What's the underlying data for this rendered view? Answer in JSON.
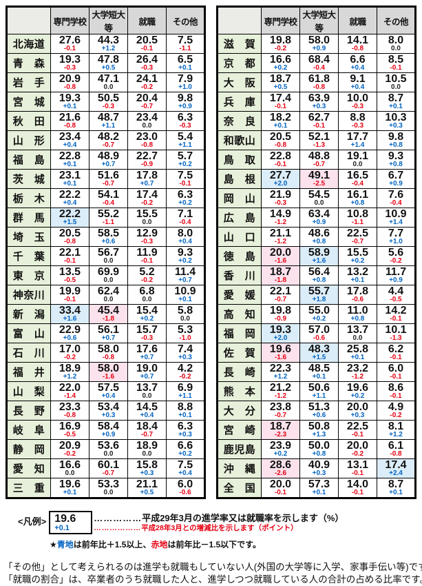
{
  "columns": [
    "専門学校",
    "大学短大等",
    "就職",
    "その他"
  ],
  "left_rows": [
    {
      "name": "北海道",
      "cells": [
        [
          "27.6",
          "-0.1"
        ],
        [
          "44.3",
          "+1.2"
        ],
        [
          "20.5",
          "-0.1"
        ],
        [
          "7.5",
          "-1.1"
        ]
      ]
    },
    {
      "name": "青　森",
      "cells": [
        [
          "19.3",
          "-0.3"
        ],
        [
          "47.8",
          "+0.5"
        ],
        [
          "26.4",
          "-0.3"
        ],
        [
          "6.5",
          "+0.1"
        ]
      ]
    },
    {
      "name": "岩　手",
      "cells": [
        [
          "20.9",
          "-0.8"
        ],
        [
          "47.1",
          "0.0"
        ],
        [
          "24.1",
          "-0.2"
        ],
        [
          "7.9",
          "+1.0"
        ]
      ]
    },
    {
      "name": "宮　城",
      "cells": [
        [
          "19.3",
          "+0.1"
        ],
        [
          "50.5",
          "-0.3"
        ],
        [
          "20.4",
          "-0.7"
        ],
        [
          "9.8",
          "+0.9"
        ]
      ]
    },
    {
      "name": "秋　田",
      "cells": [
        [
          "21.6",
          "-0.8"
        ],
        [
          "48.7",
          "+1.1"
        ],
        [
          "23.4",
          "0.0"
        ],
        [
          "6.3",
          "-0.3"
        ]
      ]
    },
    {
      "name": "山　形",
      "cells": [
        [
          "23.4",
          "+0.4"
        ],
        [
          "48.2",
          "-0.7"
        ],
        [
          "23.0",
          "-0.8"
        ],
        [
          "5.4",
          "+1.1"
        ]
      ]
    },
    {
      "name": "福　島",
      "cells": [
        [
          "22.8",
          "+0.1"
        ],
        [
          "48.9",
          "+0.7"
        ],
        [
          "22.7",
          "-0.9"
        ],
        [
          "5.7",
          "+0.2"
        ]
      ]
    },
    {
      "name": "茨　城",
      "cells": [
        [
          "23.1",
          "+0.1"
        ],
        [
          "51.6",
          "-0.7"
        ],
        [
          "17.8",
          "+0.7"
        ],
        [
          "7.5",
          "-0.1"
        ]
      ]
    },
    {
      "name": "栃　木",
      "cells": [
        [
          "22.2",
          "+0.4"
        ],
        [
          "54.1",
          "-0.4"
        ],
        [
          "17.4",
          "-0.2"
        ],
        [
          "6.3",
          "+0.2"
        ]
      ]
    },
    {
      "name": "群　馬",
      "cells": [
        [
          "22.2",
          "+1.5"
        ],
        [
          "55.2",
          "-1.1"
        ],
        [
          "15.5",
          "0.0"
        ],
        [
          "7.1",
          "-0.4"
        ]
      ]
    },
    {
      "name": "埼　玉",
      "cells": [
        [
          "20.5",
          "-0.8"
        ],
        [
          "58.5",
          "+0.6"
        ],
        [
          "12.9",
          "-0.3"
        ],
        [
          "8.0",
          "+0.4"
        ]
      ]
    },
    {
      "name": "千　葉",
      "cells": [
        [
          "22.1",
          "-0.1"
        ],
        [
          "56.7",
          "0.0"
        ],
        [
          "11.9",
          "-0.1"
        ],
        [
          "9.3",
          "+0.2"
        ]
      ]
    },
    {
      "name": "東　京",
      "cells": [
        [
          "13.5",
          "-0.5"
        ],
        [
          "69.9",
          "0.0"
        ],
        [
          "5.2",
          "-0.2"
        ],
        [
          "11.4",
          "+0.7"
        ]
      ]
    },
    {
      "name": "神奈川",
      "cells": [
        [
          "19.9",
          "-0.1"
        ],
        [
          "62.4",
          "0.0"
        ],
        [
          "6.8",
          "0.0"
        ],
        [
          "10.9",
          "+0.1"
        ]
      ]
    },
    {
      "name": "新　潟",
      "cells": [
        [
          "33.4",
          "+1.6"
        ],
        [
          "45.4",
          "-1.8"
        ],
        [
          "15.4",
          "+0.2"
        ],
        [
          "5.8",
          "0.0"
        ]
      ]
    },
    {
      "name": "富　山",
      "cells": [
        [
          "22.9",
          "+0.6"
        ],
        [
          "56.1",
          "+0.7"
        ],
        [
          "15.7",
          "-0.3"
        ],
        [
          "5.3",
          "-1.0"
        ]
      ]
    },
    {
      "name": "石　川",
      "cells": [
        [
          "17.0",
          "-0.2"
        ],
        [
          "58.0",
          "-0.8"
        ],
        [
          "17.6",
          "+0.7"
        ],
        [
          "7.4",
          "+0.3"
        ]
      ]
    },
    {
      "name": "福　井",
      "cells": [
        [
          "18.9",
          "+1.2"
        ],
        [
          "58.0",
          "-1.6"
        ],
        [
          "19.0",
          "+0.7"
        ],
        [
          "4.2",
          "-0.2"
        ]
      ]
    },
    {
      "name": "山　梨",
      "cells": [
        [
          "22.0",
          "-1.4"
        ],
        [
          "57.5",
          "+0.4"
        ],
        [
          "13.7",
          "0.0"
        ],
        [
          "6.9",
          "+1.1"
        ]
      ]
    },
    {
      "name": "長　野",
      "cells": [
        [
          "23.3",
          "-0.8"
        ],
        [
          "53.4",
          "+0.3"
        ],
        [
          "14.5",
          "+0.4"
        ],
        [
          "8.8",
          "+0.1"
        ]
      ]
    },
    {
      "name": "岐　阜",
      "cells": [
        [
          "16.9",
          "-0.5"
        ],
        [
          "58.4",
          "+0.9"
        ],
        [
          "18.4",
          "-0.7"
        ],
        [
          "6.3",
          "+0.3"
        ]
      ]
    },
    {
      "name": "静　岡",
      "cells": [
        [
          "20.9",
          "-0.2"
        ],
        [
          "53.6",
          "0.0"
        ],
        [
          "18.9",
          "0.0"
        ],
        [
          "6.6",
          "+0.2"
        ]
      ]
    },
    {
      "name": "愛　知",
      "cells": [
        [
          "16.6",
          "0.0"
        ],
        [
          "60.1",
          "-0.7"
        ],
        [
          "15.8",
          "+0.3"
        ],
        [
          "7.5",
          "+0.4"
        ]
      ]
    },
    {
      "name": "三　重",
      "cells": [
        [
          "19.6",
          "+0.1"
        ],
        [
          "53.3",
          "0.0"
        ],
        [
          "21.1",
          "+0.5"
        ],
        [
          "6.0",
          "-0.6"
        ]
      ]
    }
  ],
  "right_rows": [
    {
      "name": "滋　賀",
      "cells": [
        [
          "19.8",
          "-0.2"
        ],
        [
          "58.0",
          "+0.9"
        ],
        [
          "14.1",
          "-0.8"
        ],
        [
          "8.0",
          "0.0"
        ]
      ]
    },
    {
      "name": "京　都",
      "cells": [
        [
          "16.6",
          "+0.2"
        ],
        [
          "68.4",
          "-0.4"
        ],
        [
          "6.6",
          "+0.4"
        ],
        [
          "8.5",
          "-0.1"
        ]
      ]
    },
    {
      "name": "大　阪",
      "cells": [
        [
          "18.7",
          "+0.5"
        ],
        [
          "61.8",
          "-0.8"
        ],
        [
          "9.1",
          "+0.4"
        ],
        [
          "10.5",
          "0.0"
        ]
      ]
    },
    {
      "name": "兵　庫",
      "cells": [
        [
          "17.4",
          "-0.1"
        ],
        [
          "63.9",
          "+0.3"
        ],
        [
          "10.0",
          "-0.3"
        ],
        [
          "8.7",
          "+0.1"
        ]
      ]
    },
    {
      "name": "奈　良",
      "cells": [
        [
          "18.2",
          "+0.1"
        ],
        [
          "62.7",
          "-0.1"
        ],
        [
          "8.8",
          "-0.3"
        ],
        [
          "10.3",
          "+0.3"
        ]
      ]
    },
    {
      "name": "和歌山",
      "cells": [
        [
          "20.5",
          "-0.8"
        ],
        [
          "52.1",
          "-1.3"
        ],
        [
          "17.7",
          "+1.4"
        ],
        [
          "9.8",
          "+0.8"
        ]
      ]
    },
    {
      "name": "鳥　取",
      "cells": [
        [
          "22.8",
          "-0.1"
        ],
        [
          "48.8",
          "-0.7"
        ],
        [
          "19.1",
          "0.0"
        ],
        [
          "9.3",
          "+0.8"
        ]
      ]
    },
    {
      "name": "島　根",
      "cells": [
        [
          "27.7",
          "+2.0"
        ],
        [
          "49.1",
          "-2.5"
        ],
        [
          "16.5",
          "-0.4"
        ],
        [
          "6.7",
          "+0.9"
        ]
      ]
    },
    {
      "name": "岡　山",
      "cells": [
        [
          "21.9",
          "-0.3"
        ],
        [
          "54.5",
          "0.0"
        ],
        [
          "16.1",
          "+0.8"
        ],
        [
          "7.6",
          "-0.4"
        ]
      ]
    },
    {
      "name": "広　島",
      "cells": [
        [
          "14.9",
          "-1.2"
        ],
        [
          "63.4",
          "+0.9"
        ],
        [
          "10.8",
          "-1.1"
        ],
        [
          "10.9",
          "+1.4"
        ]
      ]
    },
    {
      "name": "山　口",
      "cells": [
        [
          "21.1",
          "-1.2"
        ],
        [
          "48.6",
          "+0.8"
        ],
        [
          "22.5",
          "-0.7"
        ],
        [
          "7.7",
          "+1.0"
        ]
      ]
    },
    {
      "name": "徳　島",
      "cells": [
        [
          "20.0",
          "-1.6"
        ],
        [
          "58.9",
          "+1.6"
        ],
        [
          "15.5",
          "+0.2"
        ],
        [
          "5.6",
          "-0.2"
        ]
      ]
    },
    {
      "name": "香　川",
      "cells": [
        [
          "18.7",
          "-1.8"
        ],
        [
          "56.4",
          "+0.8"
        ],
        [
          "13.2",
          "+0.1"
        ],
        [
          "11.7",
          "+0.9"
        ]
      ]
    },
    {
      "name": "愛　媛",
      "cells": [
        [
          "22.1",
          "-0.7"
        ],
        [
          "55.7",
          "+1.8"
        ],
        [
          "17.8",
          "-0.6"
        ],
        [
          "4.4",
          "-0.5"
        ]
      ]
    },
    {
      "name": "高　知",
      "cells": [
        [
          "19.8",
          "-0.9"
        ],
        [
          "55.0",
          "+0.2"
        ],
        [
          "11.0",
          "+0.8"
        ],
        [
          "14.2",
          "-0.1"
        ]
      ]
    },
    {
      "name": "福　岡",
      "cells": [
        [
          "19.3",
          "+2.0"
        ],
        [
          "57.0",
          "-0.6"
        ],
        [
          "13.7",
          "0.0"
        ],
        [
          "10.1",
          "-1.3"
        ]
      ]
    },
    {
      "name": "佐　賀",
      "cells": [
        [
          "19.6",
          "-1.6"
        ],
        [
          "48.3",
          "+1.5"
        ],
        [
          "25.8",
          "+0.1"
        ],
        [
          "6.2",
          "-0.1"
        ]
      ]
    },
    {
      "name": "長　崎",
      "cells": [
        [
          "22.3",
          "+1.2"
        ],
        [
          "48.5",
          "+0.1"
        ],
        [
          "23.2",
          "-1.2"
        ],
        [
          "6.0",
          "-0.1"
        ]
      ]
    },
    {
      "name": "熊　本",
      "cells": [
        [
          "21.2",
          "-1.2"
        ],
        [
          "50.6",
          "+1.1"
        ],
        [
          "19.6",
          "+0.2"
        ],
        [
          "8.6",
          "-0.1"
        ]
      ]
    },
    {
      "name": "大　分",
      "cells": [
        [
          "23.8",
          "-0.7"
        ],
        [
          "51.3",
          "+0.6"
        ],
        [
          "20.0",
          "+0.3"
        ],
        [
          "4.9",
          "-0.2"
        ]
      ]
    },
    {
      "name": "宮　崎",
      "cells": [
        [
          "18.7",
          "-2.3"
        ],
        [
          "50.8",
          "+1.3"
        ],
        [
          "22.5",
          "-0.1"
        ],
        [
          "8.1",
          "+1.2"
        ]
      ]
    },
    {
      "name": "鹿児島",
      "cells": [
        [
          "23.9",
          "+0.2"
        ],
        [
          "50.0",
          "+0.8"
        ],
        [
          "20.0",
          "-0.2"
        ],
        [
          "6.1",
          "-0.8"
        ]
      ]
    },
    {
      "name": "沖　縄",
      "cells": [
        [
          "28.6",
          "-2.6"
        ],
        [
          "40.9",
          "+0.3"
        ],
        [
          "13.1",
          "-0.1"
        ],
        [
          "17.4",
          "+2.4"
        ]
      ]
    },
    {
      "name": "全　国",
      "cells": [
        [
          "20.0",
          "-0.1"
        ],
        [
          "57.3",
          "+0.1"
        ],
        [
          "14.0",
          "-0.1"
        ],
        [
          "8.7",
          "+0.1"
        ]
      ]
    }
  ],
  "legend": {
    "label": "<凡例>",
    "sample_value": "19.6",
    "sample_delta": "+0.1",
    "dots1": "……………",
    "line1": "平成29年3月の進学率又は就職率を示します（%）",
    "dots2": "………………",
    "line2": "平成28年3月との増減比を示します（ポイント）",
    "star": "★",
    "blue_word": "青地",
    "star_mid1": "は前年比＋1.5以上、",
    "red_word": "赤地",
    "star_mid2": "は前年比－1.5以下です。"
  },
  "notes": {
    "line1": "「その他」として考えられるのは進学も就職もしていない人(外国の大学等に入学、家事手伝い等)です。",
    "line2": "「就職の割合」は、卒業者のうち就職した人と、進学しつつ就職している人の合計の占める比率です。"
  },
  "colors": {
    "highlight_blue": "#dbedf8",
    "highlight_red": "#fbe2ec",
    "delta_positive": "#0063c0",
    "delta_negative": "#e60012",
    "prefecture_green": "#e7f0da",
    "header_gray": "#d8d8d8"
  },
  "highlight_rule": {
    "blue_threshold": 1.5,
    "red_threshold": -1.5
  }
}
